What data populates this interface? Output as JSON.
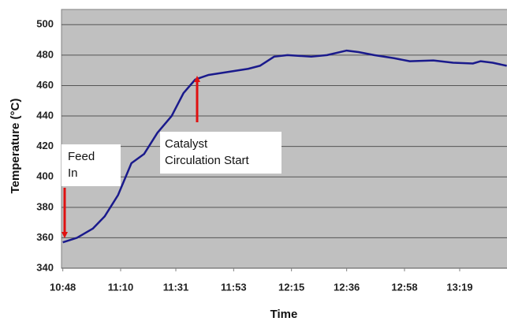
{
  "chart_data": {
    "type": "line",
    "x_label": "Time",
    "y_label": "Temperature (°C)",
    "xlim": [
      647.5,
      817
    ],
    "ylim": [
      340,
      510
    ],
    "xticks": [
      {
        "value": 648,
        "label": "10:48"
      },
      {
        "value": 670,
        "label": "11:10"
      },
      {
        "value": 691,
        "label": "11:31"
      },
      {
        "value": 713,
        "label": "11:53"
      },
      {
        "value": 735,
        "label": "12:15"
      },
      {
        "value": 756,
        "label": "12:36"
      },
      {
        "value": 778,
        "label": "12:58"
      },
      {
        "value": 799,
        "label": "13:19"
      }
    ],
    "yticks": [
      340,
      360,
      380,
      400,
      420,
      440,
      460,
      480,
      500
    ],
    "grid": true,
    "series": [
      {
        "color": "#1a1a8c",
        "x": [
          648,
          653.4,
          659.4,
          663.9,
          669,
          674.1,
          678.9,
          684,
          689.4,
          693.9,
          698.4,
          703.5,
          711,
          718.5,
          723,
          728.4,
          733.5,
          742.5,
          748.5,
          756,
          760.5,
          766.5,
          774,
          780,
          789,
          796.5,
          804,
          807,
          811.5,
          816.9
        ],
        "values": [
          357,
          360,
          366,
          374,
          388,
          409,
          415,
          429,
          440,
          455,
          464,
          467,
          469,
          471,
          473,
          479,
          480,
          479,
          480,
          483,
          482,
          480,
          478,
          476,
          476.5,
          475,
          474.5,
          476,
          475,
          473
        ]
      }
    ],
    "annotations": [
      {
        "lines": [
          "Feed",
          "In"
        ]
      },
      {
        "lines": [
          "Catalyst",
          "Circulation  Start"
        ]
      }
    ]
  }
}
